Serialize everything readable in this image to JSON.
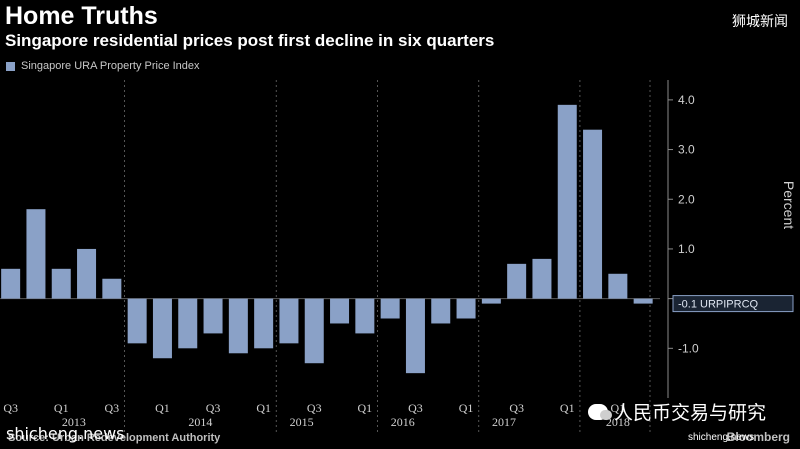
{
  "header": {
    "title": "Home Truths",
    "subtitle": "Singapore residential prices post first decline in six quarters",
    "watermark": "狮城新闻"
  },
  "footer": {
    "source": "Source: Urban Redevelopment Authority",
    "brand": "Bloomberg",
    "watermark_left": "shicheng.news",
    "watermark_right": "shicheng.news",
    "badge_text": "人民币交易与研究",
    "badge_icon": "wechat-icon"
  },
  "colors": {
    "background": "#000000",
    "bar": "#8aa1c7",
    "gridline": "#3a3a3a",
    "text": "#ffffff",
    "tick_text": "#d0d0d0"
  },
  "chart_data": {
    "type": "bar",
    "series": [
      {
        "name": "Singapore URA Property Price Index",
        "values": [
          0.6,
          1.8,
          0.6,
          1.0,
          0.4,
          -0.9,
          -1.2,
          -1.0,
          -0.7,
          -1.1,
          -1.0,
          -0.9,
          -1.3,
          -0.5,
          -0.7,
          -0.4,
          -1.5,
          -0.5,
          -0.4,
          -0.1,
          0.7,
          0.8,
          3.9,
          3.4,
          0.5,
          -0.1
        ]
      }
    ],
    "x_tick_labels": [
      "Q3",
      "Q1",
      "Q3",
      "Q1",
      "Q3",
      "Q1",
      "Q3",
      "Q1",
      "Q3",
      "Q1",
      "Q3",
      "Q1",
      "Q1"
    ],
    "x_tick_index": [
      0,
      2,
      4,
      6,
      8,
      10,
      12,
      14,
      16,
      18,
      20,
      22,
      24
    ],
    "year_labels": [
      "2013",
      "2014",
      "2015",
      "2016",
      "2017",
      "2018"
    ],
    "year_center_index": [
      2.5,
      7.5,
      11.5,
      15.5,
      19.5,
      24
    ],
    "ylabel": "Percent",
    "ylim": [
      -2.0,
      4.4
    ],
    "y_ticks": [
      -1.0,
      0,
      1.0,
      2.0,
      3.0,
      4.0
    ],
    "y_tick_labels": [
      "-1.0",
      "",
      "1.0",
      "2.0",
      "3.0",
      "4.0"
    ],
    "grid": false,
    "legend": "top-left",
    "last_value_label": "-0.1 URPIPRCQ"
  }
}
